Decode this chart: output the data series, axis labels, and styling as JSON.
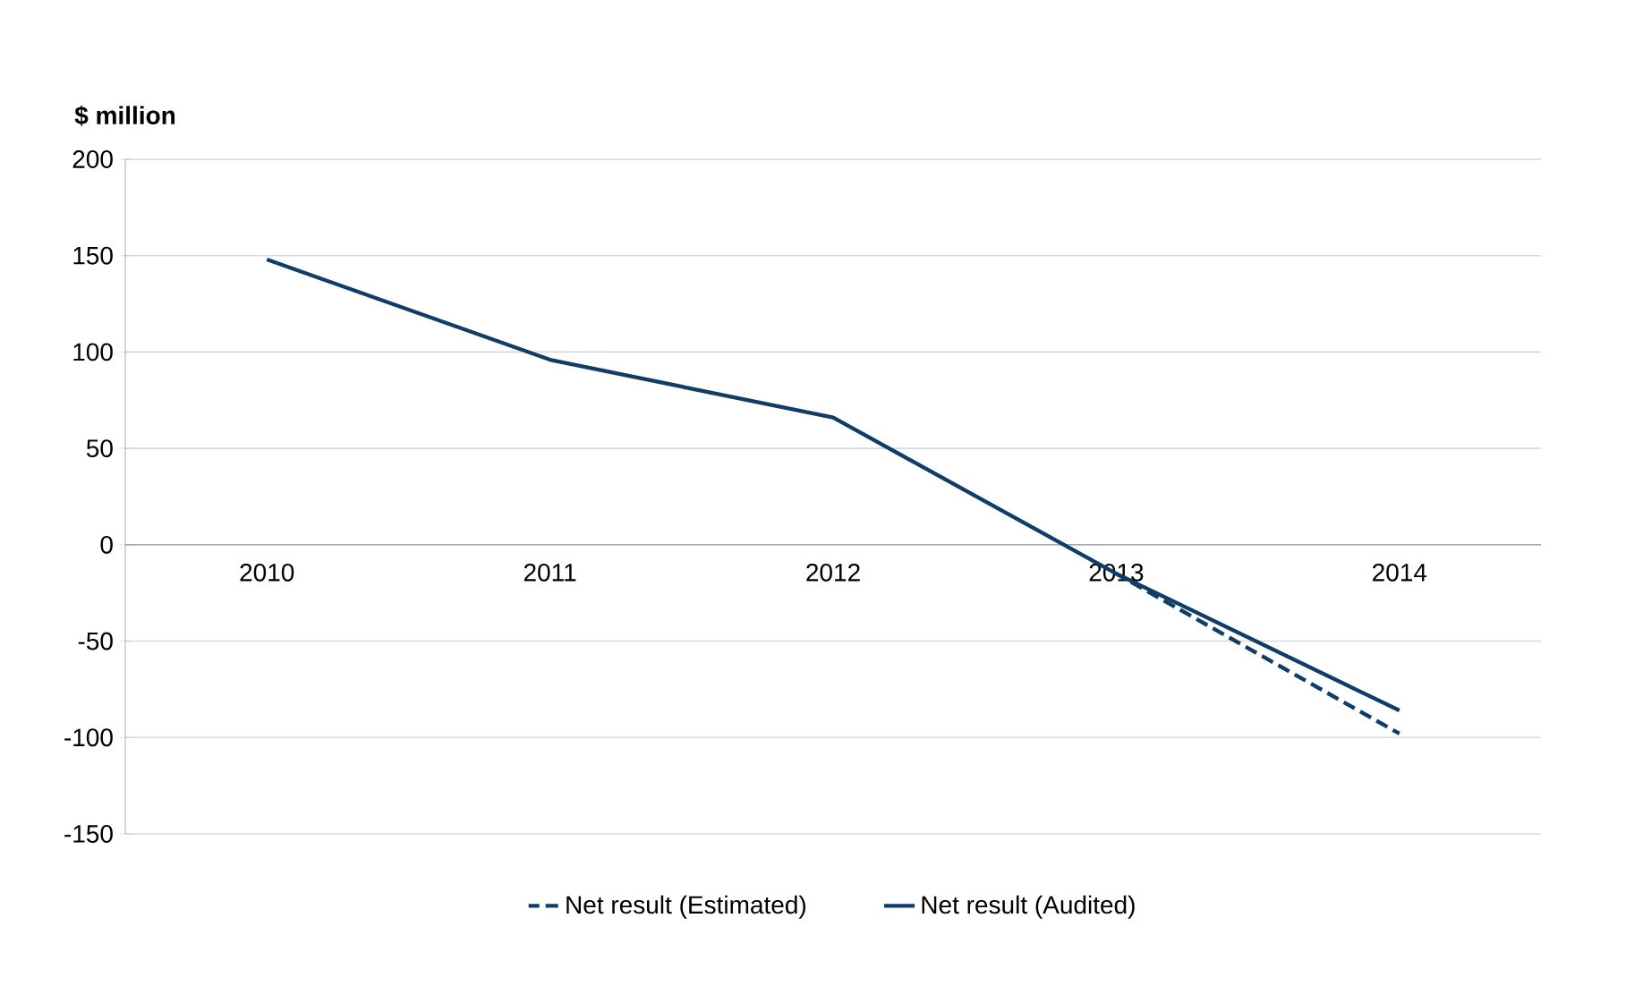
{
  "chart_data": {
    "type": "line",
    "ylabel": "$ million",
    "categories": [
      "2010",
      "2011",
      "2012",
      "2013",
      "2014"
    ],
    "series": [
      {
        "name": "Net result (Estimated)",
        "color": "#0f3d68",
        "line_style": "dashed",
        "values": [
          null,
          null,
          null,
          -15,
          -98
        ]
      },
      {
        "name": "Net result (Audited)",
        "color": "#0f3d68",
        "line_style": "solid",
        "values": [
          148,
          96,
          66,
          -15,
          -86
        ]
      }
    ],
    "ylim": [
      -150,
      200
    ],
    "yticks": [
      -150,
      -100,
      -50,
      0,
      50,
      100,
      150,
      200
    ],
    "grid": "y",
    "legend": "bottom",
    "marker": "none"
  }
}
